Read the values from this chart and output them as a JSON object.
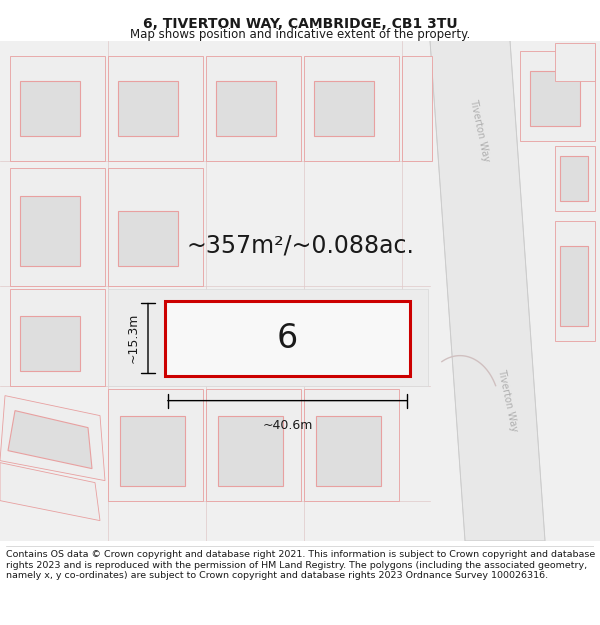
{
  "title_line1": "6, TIVERTON WAY, CAMBRIDGE, CB1 3TU",
  "title_line2": "Map shows position and indicative extent of the property.",
  "footer_text": "Contains OS data © Crown copyright and database right 2021. This information is subject to Crown copyright and database rights 2023 and is reproduced with the permission of HM Land Registry. The polygons (including the associated geometry, namely x, y co-ordinates) are subject to Crown copyright and database rights 2023 Ordnance Survey 100026316.",
  "area_label": "~357m²/~0.088ac.",
  "width_label": "~40.6m",
  "height_label": "~15.3m",
  "house_number": "6",
  "map_bg": "#f2f2f2",
  "building_edge": "#e8a0a0",
  "building_fill": "#e8e8e8",
  "building_inner_fill": "#dedede",
  "road_fill": "#e6e6e6",
  "road_edge": "#cccccc",
  "highlight_color": "#cc0000",
  "highlight_fill": "#f8f8f8",
  "text_color": "#1a1a1a",
  "road_label_color": "#b0b0b0",
  "title_fontsize": 10,
  "subtitle_fontsize": 8.5,
  "footer_fontsize": 6.8,
  "area_label_fontsize": 17,
  "dim_label_fontsize": 9,
  "house_num_fontsize": 24
}
